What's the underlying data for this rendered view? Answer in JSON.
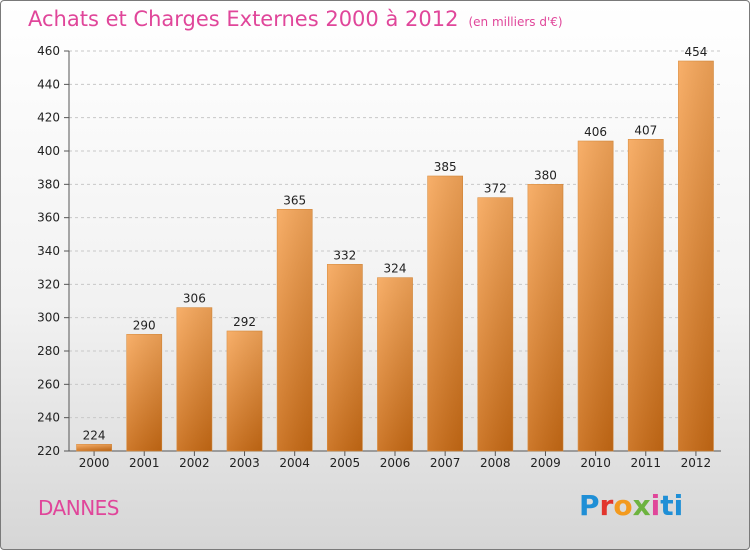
{
  "header": {
    "title": "Achats et Charges Externes 2000 à 2012",
    "subtitle": "(en milliers d'€)"
  },
  "footer": {
    "city": "DANNES",
    "logo": [
      "P",
      "r",
      "o",
      "x",
      "i",
      "t",
      "i"
    ]
  },
  "colors": {
    "bar_top": "#f7a75a",
    "bar_bottom": "#c86a14",
    "accent": "#e0469a"
  },
  "chart_data": {
    "type": "bar",
    "title": "Achats et Charges Externes 2000 à 2012",
    "subtitle": "(en milliers d'€)",
    "xlabel": "",
    "ylabel": "",
    "categories": [
      "2000",
      "2001",
      "2002",
      "2003",
      "2004",
      "2005",
      "2006",
      "2007",
      "2008",
      "2009",
      "2010",
      "2011",
      "2012"
    ],
    "values": [
      224,
      290,
      306,
      292,
      365,
      332,
      324,
      385,
      372,
      380,
      406,
      407,
      454
    ],
    "ylim": [
      220,
      460
    ],
    "yticks": [
      220,
      240,
      260,
      280,
      300,
      320,
      340,
      360,
      380,
      400,
      420,
      440,
      460
    ],
    "grid": true,
    "legend": "none"
  }
}
